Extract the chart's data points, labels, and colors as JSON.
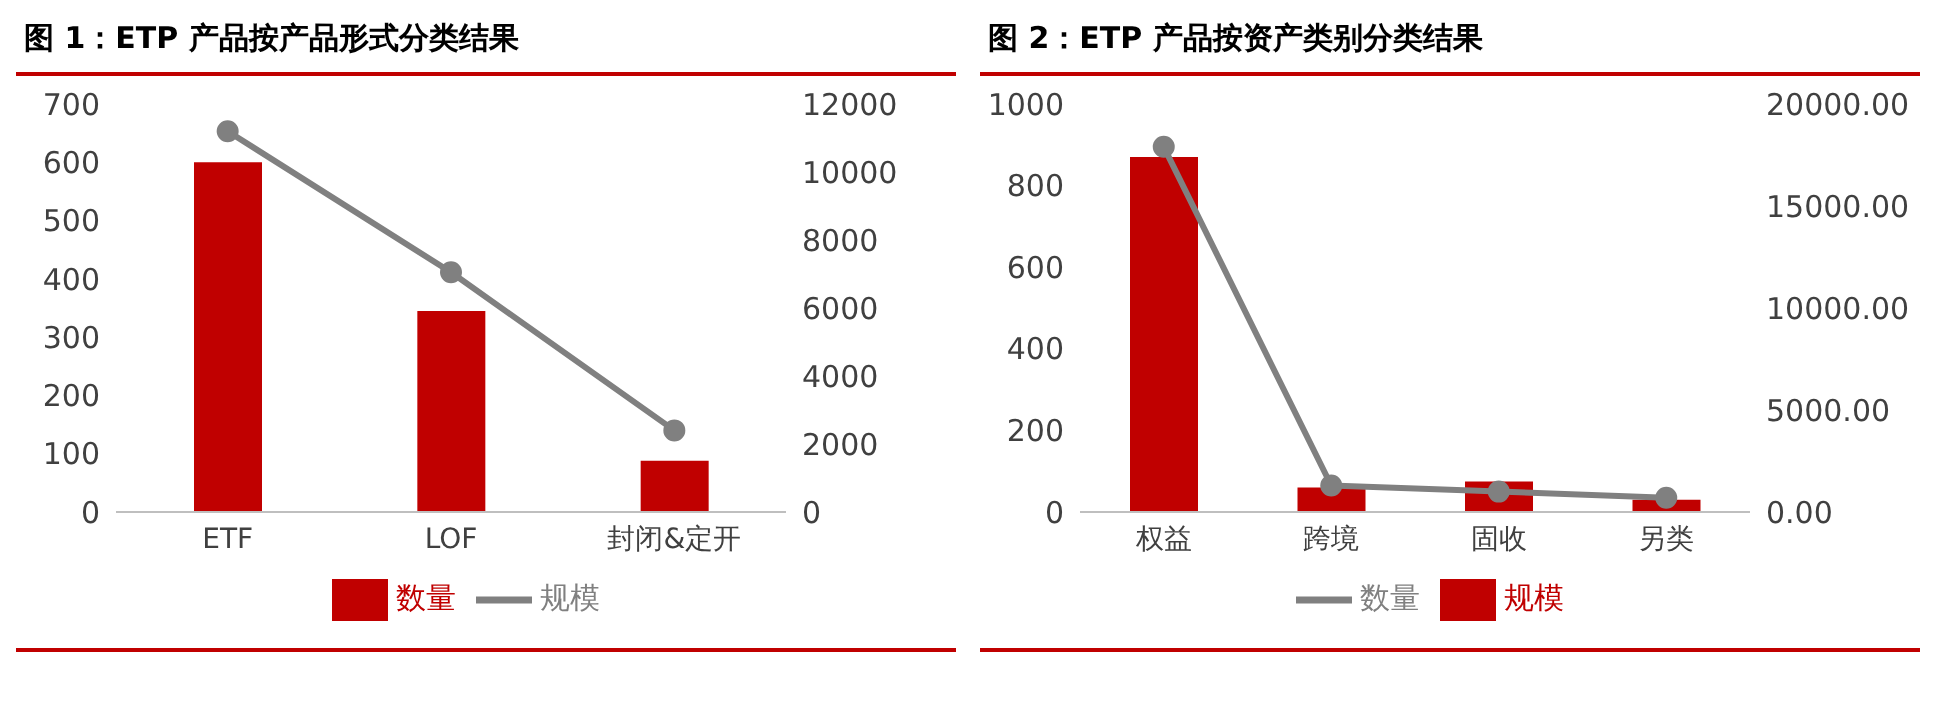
{
  "chart_data": [
    {
      "type": "bar",
      "title": "图 1：ETP 产品按产品形式分类结果",
      "categories": [
        "ETF",
        "LOF",
        "封闭&定开"
      ],
      "series": [
        {
          "name": "数量",
          "color": "#c00000",
          "values": [
            600,
            345,
            88
          ]
        },
        {
          "name": "规模",
          "type": "line",
          "axis": "y2",
          "color": "#808080",
          "values": [
            11200,
            7050,
            2400
          ]
        }
      ],
      "ylim": [
        0,
        700
      ],
      "yticks": [
        0,
        100,
        200,
        300,
        400,
        500,
        600,
        700
      ],
      "y2lim": [
        0,
        12000
      ],
      "y2ticks": [
        0,
        2000,
        4000,
        6000,
        8000,
        10000,
        12000
      ],
      "grid": false,
      "legend": "bottom",
      "marker": "circle"
    },
    {
      "type": "bar",
      "title": "图 2：ETP 产品按资产类别分类结果",
      "categories": [
        "权益",
        "跨境",
        "固收",
        "另类"
      ],
      "series": [
        {
          "name": "规模",
          "color": "#c00000",
          "values": [
            870,
            60,
            75,
            30
          ]
        },
        {
          "name": "数量",
          "type": "line",
          "axis": "y2",
          "color": "#808080",
          "values": [
            17900,
            1300,
            1000,
            700
          ]
        }
      ],
      "ylim": [
        0,
        1000
      ],
      "yticks": [
        0,
        200,
        400,
        600,
        800,
        1000
      ],
      "y2lim": [
        0,
        20000
      ],
      "y2ticks": [
        {
          "value": 0,
          "label": "0.00"
        },
        {
          "value": 5000,
          "label": "5000.00"
        },
        {
          "value": 10000,
          "label": "10000.00"
        },
        {
          "value": 15000,
          "label": "15000.00"
        },
        {
          "value": 20000,
          "label": "20000.00"
        }
      ],
      "grid": false,
      "legend": "bottom",
      "marker": "circle"
    }
  ]
}
